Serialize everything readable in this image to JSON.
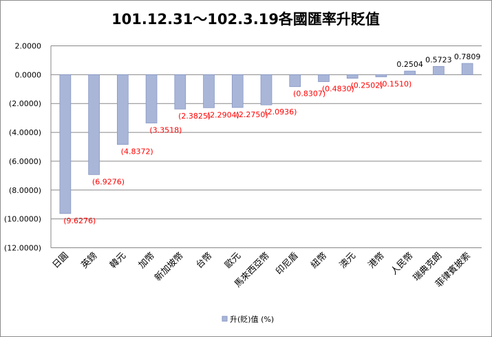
{
  "chart_data": {
    "type": "bar",
    "title": "101.12.31～102.3.19各國匯率升貶值",
    "categories": [
      "日圓",
      "英鎊",
      "韓元",
      "加幣",
      "新加坡幣",
      "台幣",
      "歐元",
      "馬來西亞幣",
      "印尼盾",
      "紐幣",
      "澳元",
      "港幣",
      "人民幣",
      "瑞典克朗",
      "菲律賓披索"
    ],
    "series": [
      {
        "name": "升(貶)值 (%)",
        "values": [
          -9.6276,
          -6.9276,
          -4.8372,
          -3.3518,
          -2.3825,
          -2.2904,
          -2.275,
          -2.0936,
          -0.8307,
          -0.483,
          -0.2502,
          -0.151,
          0.2504,
          0.5723,
          0.7809
        ],
        "labels": [
          "(9.6276)",
          "(6.9276)",
          "(4.8372)",
          "(3.3518)",
          "(2.3825)",
          "(2.2904)",
          "(2.2750)",
          "(2.0936)",
          "(0.8307)",
          "(0.4830)",
          "(0.2502)",
          "(0.1510)",
          "0.2504",
          "0.5723",
          "0.7809"
        ]
      }
    ],
    "ylim": [
      -12,
      2
    ],
    "yticks": [
      2,
      0,
      -2,
      -4,
      -6,
      -8,
      -10,
      -12
    ],
    "ytick_labels": [
      "2.0000",
      "0.0000",
      "(2.0000)",
      "(4.0000)",
      "(6.0000)",
      "(8.0000)",
      "(10.0000)",
      "(12.0000)"
    ],
    "grid": true,
    "legend_position": "bottom",
    "colors": {
      "bar_fill": "#a9b6d8",
      "bar_stroke": "#8797c4",
      "negative_label": "#ff0000",
      "positive_label": "#000000",
      "grid": "#878787"
    }
  }
}
